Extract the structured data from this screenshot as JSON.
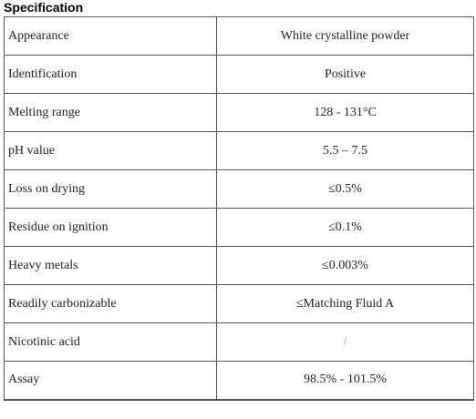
{
  "header": {
    "title": "Specification"
  },
  "table": {
    "rows": [
      [
        "Appearance",
        "White crystalline powder"
      ],
      [
        "Identification",
        "Positive"
      ],
      [
        "Melting range",
        "128 - 131°C"
      ],
      [
        "pH value",
        "5.5 – 7.5"
      ],
      [
        "Loss on drying",
        "≤0.5%"
      ],
      [
        "Residue on ignition",
        "≤0.1%"
      ],
      [
        "Heavy metals",
        "≤0.003%"
      ],
      [
        "Readily carbonizable",
        "≤Matching Fluid A"
      ],
      [
        "Nicotinic acid",
        "/"
      ],
      [
        "Assay",
        "98.5% - 101.5%"
      ]
    ]
  }
}
